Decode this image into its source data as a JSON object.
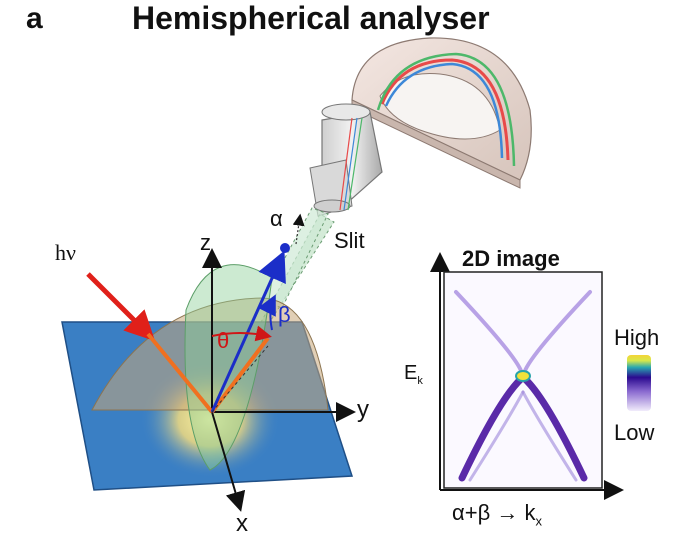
{
  "panel": {
    "letter": "a",
    "title": "Hemispherical analyser"
  },
  "labels": {
    "slit": "Slit",
    "alpha": "α",
    "beta": "β",
    "theta": "θ",
    "z": "z",
    "y": "y",
    "x": "x",
    "photon": "hν"
  },
  "image2d": {
    "title": "2D image",
    "energy_label": "E",
    "energy_sub": "k",
    "colorbar_high": "High",
    "colorbar_low": "Low",
    "xaxis_prefix": "α+β → k",
    "xaxis_sub": "x"
  },
  "colors": {
    "beam": "#e0201a",
    "sample": "#3a7fc4",
    "band": "#5a2aa8",
    "emission_cone": "#6fbf7a",
    "electron_vector": "#1b2ec8"
  },
  "icons": [
    "analyser-hemisphere-icon",
    "electron-lens-icon",
    "sample-plane-icon"
  ]
}
